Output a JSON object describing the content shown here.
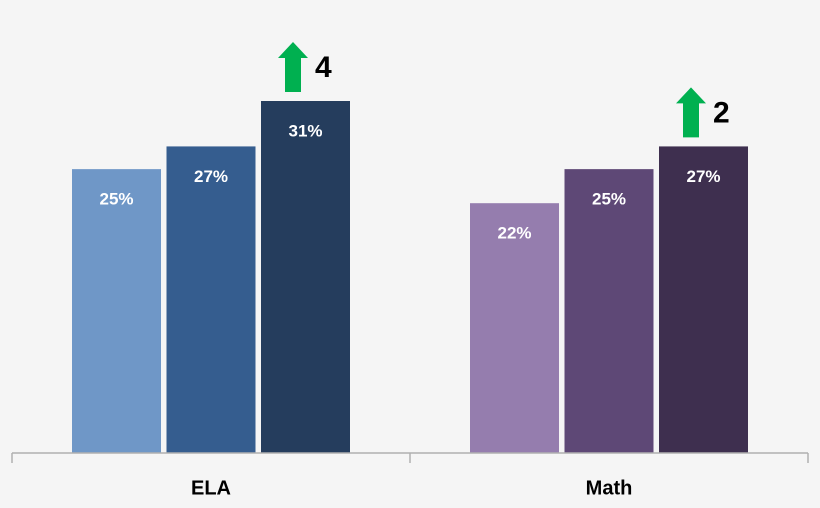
{
  "chart_data": {
    "type": "bar",
    "categories": [
      "ELA",
      "Math"
    ],
    "series": [
      {
        "colors": [
          "#6f97c7",
          "#957dae"
        ],
        "values": [
          25,
          22
        ],
        "value_labels": [
          "25%",
          "22%"
        ]
      },
      {
        "colors": [
          "#355d8f",
          "#5e4876"
        ],
        "values": [
          27,
          25
        ],
        "value_labels": [
          "27%",
          "25%"
        ]
      },
      {
        "colors": [
          "#253d5d",
          "#3e2f4f"
        ],
        "values": [
          31,
          27
        ],
        "value_labels": [
          "31%",
          "27%"
        ]
      }
    ],
    "annotations": [
      "4",
      "2"
    ],
    "annotation_color": "#00b050"
  }
}
